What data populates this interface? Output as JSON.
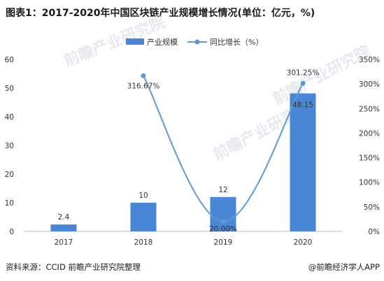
{
  "title": "图表1：2017-2020年中国区块链产业规模增长情况(单位：亿元，%)",
  "source": "资料来源：CCID 前瞻产业研究院整理",
  "credit": "@前瞻经济学人APP",
  "watermark": "前瞻产业研究院",
  "colors": {
    "bar": "#4a86d6",
    "line": "#5b9bd5"
  },
  "chart_data": {
    "type": "bar",
    "categories": [
      "2017",
      "2018",
      "2019",
      "2020"
    ],
    "series": [
      {
        "name": "产业规模",
        "type": "bar",
        "axis": "left",
        "values": [
          2.4,
          10,
          12,
          48.15
        ],
        "labels": [
          "2.4",
          "10",
          "12",
          "48.15"
        ]
      },
      {
        "name": "同比增长（%）",
        "type": "line",
        "axis": "right",
        "values": [
          null,
          316.67,
          20.0,
          301.25
        ],
        "labels": [
          "",
          "316.67%",
          "20.00%",
          "301.25%"
        ]
      }
    ],
    "ylim_left": [
      0,
      60
    ],
    "yticks_left": [
      "0",
      "10",
      "20",
      "30",
      "40",
      "50",
      "60"
    ],
    "ylim_right": [
      0,
      350
    ],
    "yticks_right": [
      "0%",
      "50%",
      "100%",
      "150%",
      "200%",
      "250%",
      "300%",
      "350%"
    ],
    "legend": "top-center",
    "grid": false
  }
}
